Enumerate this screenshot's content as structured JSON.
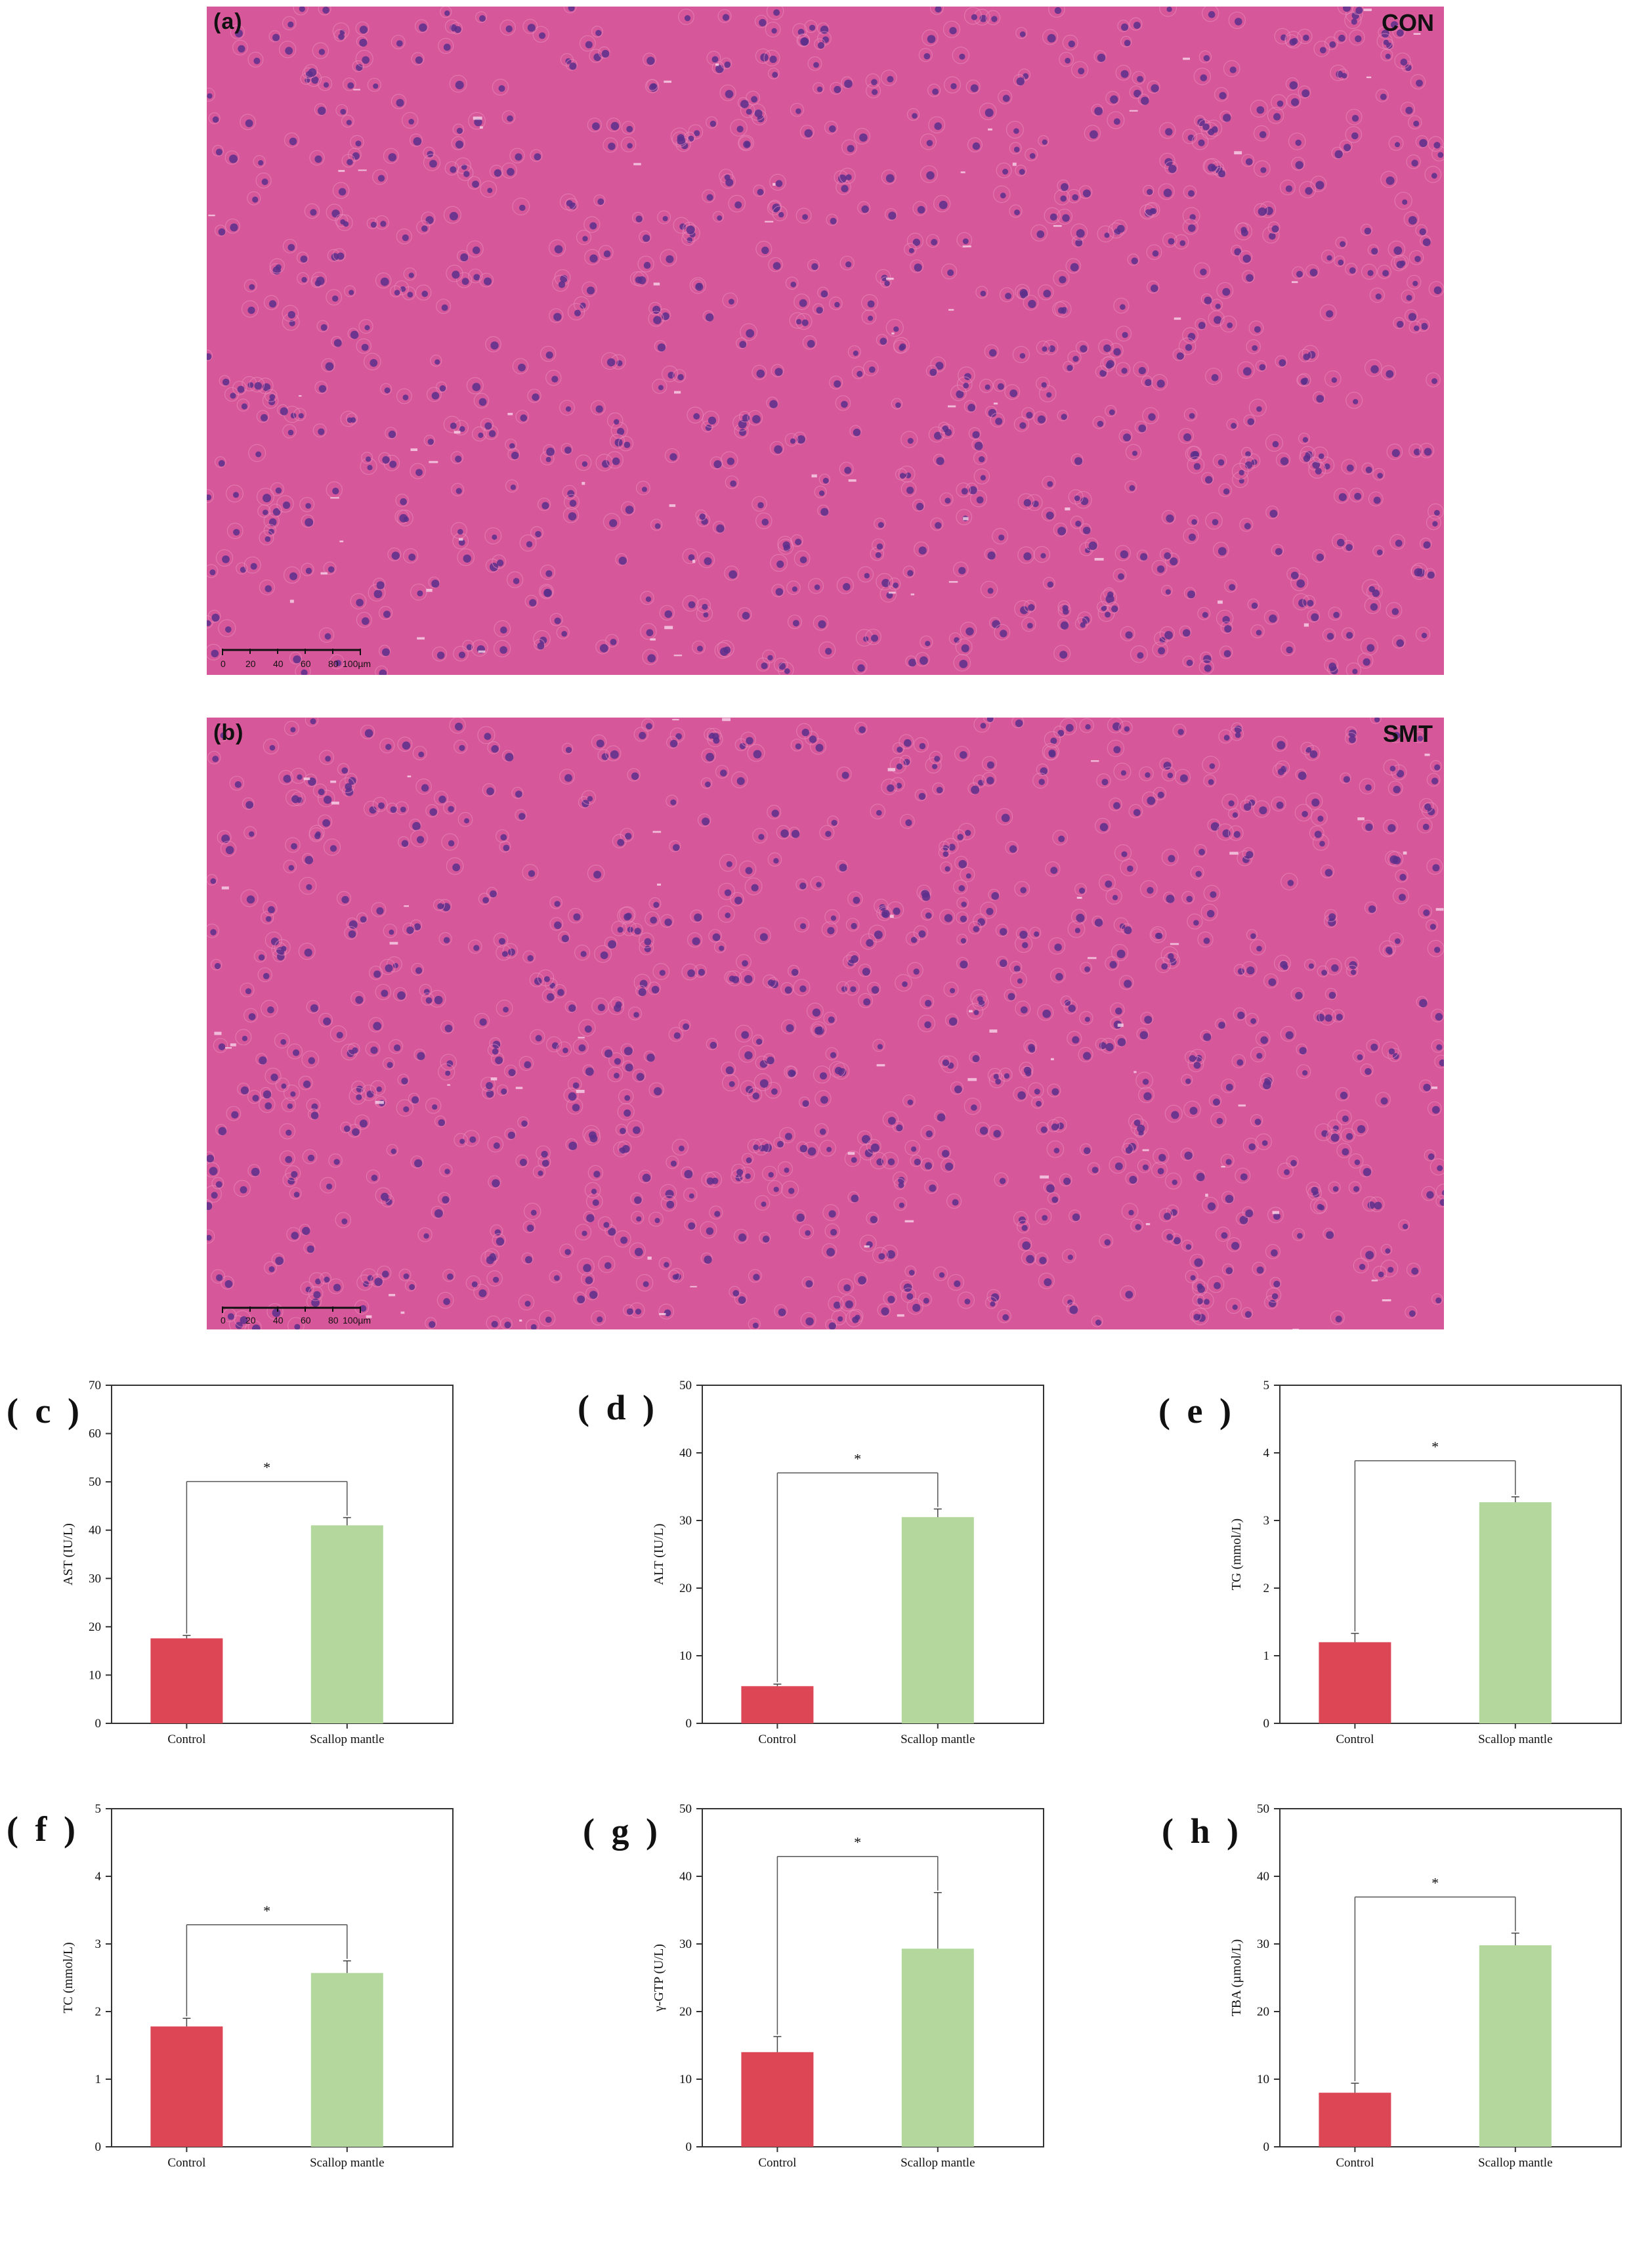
{
  "micrographs": [
    {
      "panel": "(a)",
      "group": "CON",
      "scale_ticks": [
        "0",
        "20",
        "40",
        "60",
        "80",
        "100µm"
      ]
    },
    {
      "panel": "(b)",
      "group": "SMT",
      "scale_ticks": [
        "0",
        "20",
        "40",
        "60",
        "80",
        "100µm"
      ]
    }
  ],
  "colors": {
    "control_bar": "#dd4655",
    "treatment_bar": "#b3d79c",
    "tissue": "#d7589a",
    "nucleus": "#5b2f8c"
  },
  "chart_data": [
    {
      "panel": "( c )",
      "type": "bar",
      "categories": [
        "Control",
        "Scallop mantle"
      ],
      "values": [
        17.6,
        41.0
      ],
      "errors": [
        0.6,
        1.6
      ],
      "ylabel": "AST (IU/L)",
      "ylim": [
        0,
        70
      ],
      "yticks": [
        "0",
        "10",
        "20",
        "30",
        "40",
        "50",
        "60",
        "70"
      ],
      "significance": "*"
    },
    {
      "panel": "( d )",
      "type": "bar",
      "categories": [
        "Control",
        "Scallop mantle"
      ],
      "values": [
        5.5,
        30.5
      ],
      "errors": [
        0.3,
        1.2
      ],
      "ylabel": "ALT (IU/L)",
      "ylim": [
        0,
        50
      ],
      "yticks": [
        "0",
        "10",
        "20",
        "30",
        "40",
        "50"
      ],
      "significance": "*"
    },
    {
      "panel": "( e )",
      "type": "bar",
      "categories": [
        "Control",
        "Scallop mantle"
      ],
      "values": [
        1.2,
        3.27
      ],
      "errors": [
        0.13,
        0.08
      ],
      "ylabel": "TG (mmol/L)",
      "ylim": [
        0,
        5
      ],
      "yticks": [
        "0",
        "1",
        "2",
        "3",
        "4",
        "5"
      ],
      "significance": "*"
    },
    {
      "panel": "( f )",
      "type": "bar",
      "categories": [
        "Control",
        "Scallop mantle"
      ],
      "values": [
        1.78,
        2.57
      ],
      "errors": [
        0.12,
        0.18
      ],
      "ylabel": "TC (mmol/L)",
      "ylim": [
        0,
        5
      ],
      "yticks": [
        "0",
        "1",
        "2",
        "3",
        "4",
        "5"
      ],
      "significance": "*"
    },
    {
      "panel": "( g )",
      "type": "bar",
      "categories": [
        "Control",
        "Scallop mantle"
      ],
      "values": [
        14.0,
        29.3
      ],
      "errors": [
        2.3,
        8.3
      ],
      "ylabel": "γ-GTP (U/L)",
      "ylim": [
        0,
        50
      ],
      "yticks": [
        "0",
        "10",
        "20",
        "30",
        "40",
        "50"
      ],
      "significance": "*"
    },
    {
      "panel": "( h )",
      "type": "bar",
      "categories": [
        "Control",
        "Scallop mantle"
      ],
      "values": [
        8.0,
        29.8
      ],
      "errors": [
        1.4,
        1.8
      ],
      "ylabel": "TBA (µmol/L)",
      "ylim": [
        0,
        50
      ],
      "yticks": [
        "0",
        "10",
        "20",
        "30",
        "40",
        "50"
      ],
      "significance": "*"
    }
  ]
}
